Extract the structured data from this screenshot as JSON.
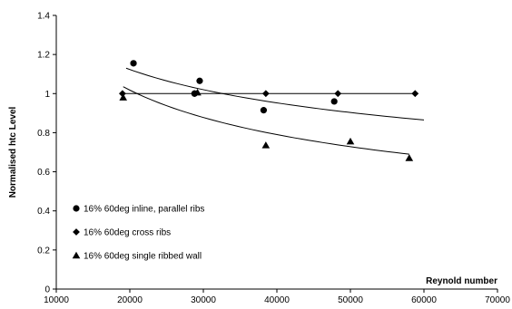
{
  "chart_data": {
    "type": "scatter",
    "title": "",
    "xlabel": "Reynold number",
    "ylabel": "Normalised htc Level",
    "xlim": [
      10000,
      70000
    ],
    "ylim": [
      0,
      1.4
    ],
    "xticks": [
      "10000",
      "20000",
      "30000",
      "40000",
      "50000",
      "60000",
      "70000"
    ],
    "yticks": [
      "0",
      "0.2",
      "0.4",
      "0.6",
      "0.8",
      "1",
      "1.2",
      "1.4"
    ],
    "grid": false,
    "legend_position": "lower-left",
    "series": [
      {
        "name": "16% 60deg inline, parallel ribs",
        "marker": "circle",
        "color": "#000000",
        "x": [
          20500,
          28800,
          29500,
          38200,
          47800
        ],
        "y": [
          1.155,
          1.0,
          1.065,
          0.915,
          0.96
        ],
        "trend": {
          "type": "power",
          "x": [
            19500,
            60000
          ],
          "y": [
            1.13,
            0.865
          ]
        }
      },
      {
        "name": "16% 60deg cross ribs",
        "marker": "diamond",
        "color": "#000000",
        "x": [
          19000,
          28800,
          38500,
          48300,
          58800
        ],
        "y": [
          1.0,
          1.0,
          1.0,
          1.0,
          1.0
        ],
        "trend": {
          "type": "linear",
          "x": [
            19000,
            58800
          ],
          "y": [
            1.0,
            1.0
          ]
        }
      },
      {
        "name": "16% 60deg single ribbed wall",
        "marker": "triangle",
        "color": "#000000",
        "x": [
          19100,
          29200,
          38500,
          50000,
          58000
        ],
        "y": [
          0.98,
          1.005,
          0.735,
          0.755,
          0.67
        ],
        "trend": {
          "type": "power",
          "x": [
            19100,
            58000
          ],
          "y": [
            1.035,
            0.69
          ]
        }
      }
    ]
  }
}
